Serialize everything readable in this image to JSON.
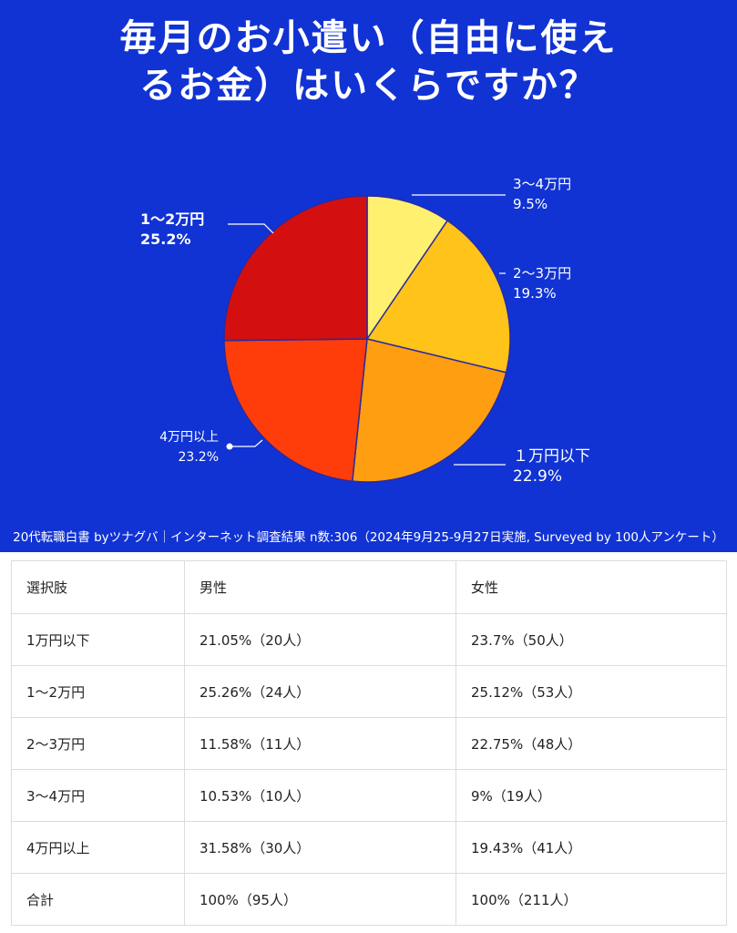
{
  "title": {
    "line1": "毎月のお小遣い（自由に使え",
    "line2": "るお金）はいくらですか？"
  },
  "footer": "20代転職白書 byツナグバ｜インターネット調査結果 n数:306（2024年9月25-9月27日実施, Surveyed by 100人アンケート）",
  "chart_data": {
    "type": "pie",
    "slices": [
      {
        "label": "3〜4万円",
        "value": 9.5,
        "value_label": "9.5%",
        "color": "#fff070"
      },
      {
        "label": "2〜3万円",
        "value": 19.3,
        "value_label": "19.3%",
        "color": "#ffc31a"
      },
      {
        "label": "１万円以下",
        "value": 22.9,
        "value_label": "22.9%",
        "color": "#ff9e10"
      },
      {
        "label": "4万円以上",
        "value": 23.2,
        "value_label": "23.2%",
        "color": "#ff3d0a"
      },
      {
        "label": "1〜2万円",
        "value": 25.2,
        "value_label": "25.2%",
        "color": "#d40f0f"
      }
    ]
  },
  "table": {
    "headers": [
      "選択肢",
      "男性",
      "女性"
    ],
    "rows": [
      [
        "1万円以下",
        "21.05%（20人）",
        "23.7%（50人）"
      ],
      [
        "1〜2万円",
        "25.26%（24人）",
        "25.12%（53人）"
      ],
      [
        "2〜3万円",
        "11.58%（11人）",
        "22.75%（48人）"
      ],
      [
        "3〜4万円",
        "10.53%（10人）",
        "9%（19人）"
      ],
      [
        "4万円以上",
        "31.58%（30人）",
        "19.43%（41人）"
      ],
      [
        "合計",
        "100%（95人）",
        "100%（211人）"
      ]
    ]
  }
}
